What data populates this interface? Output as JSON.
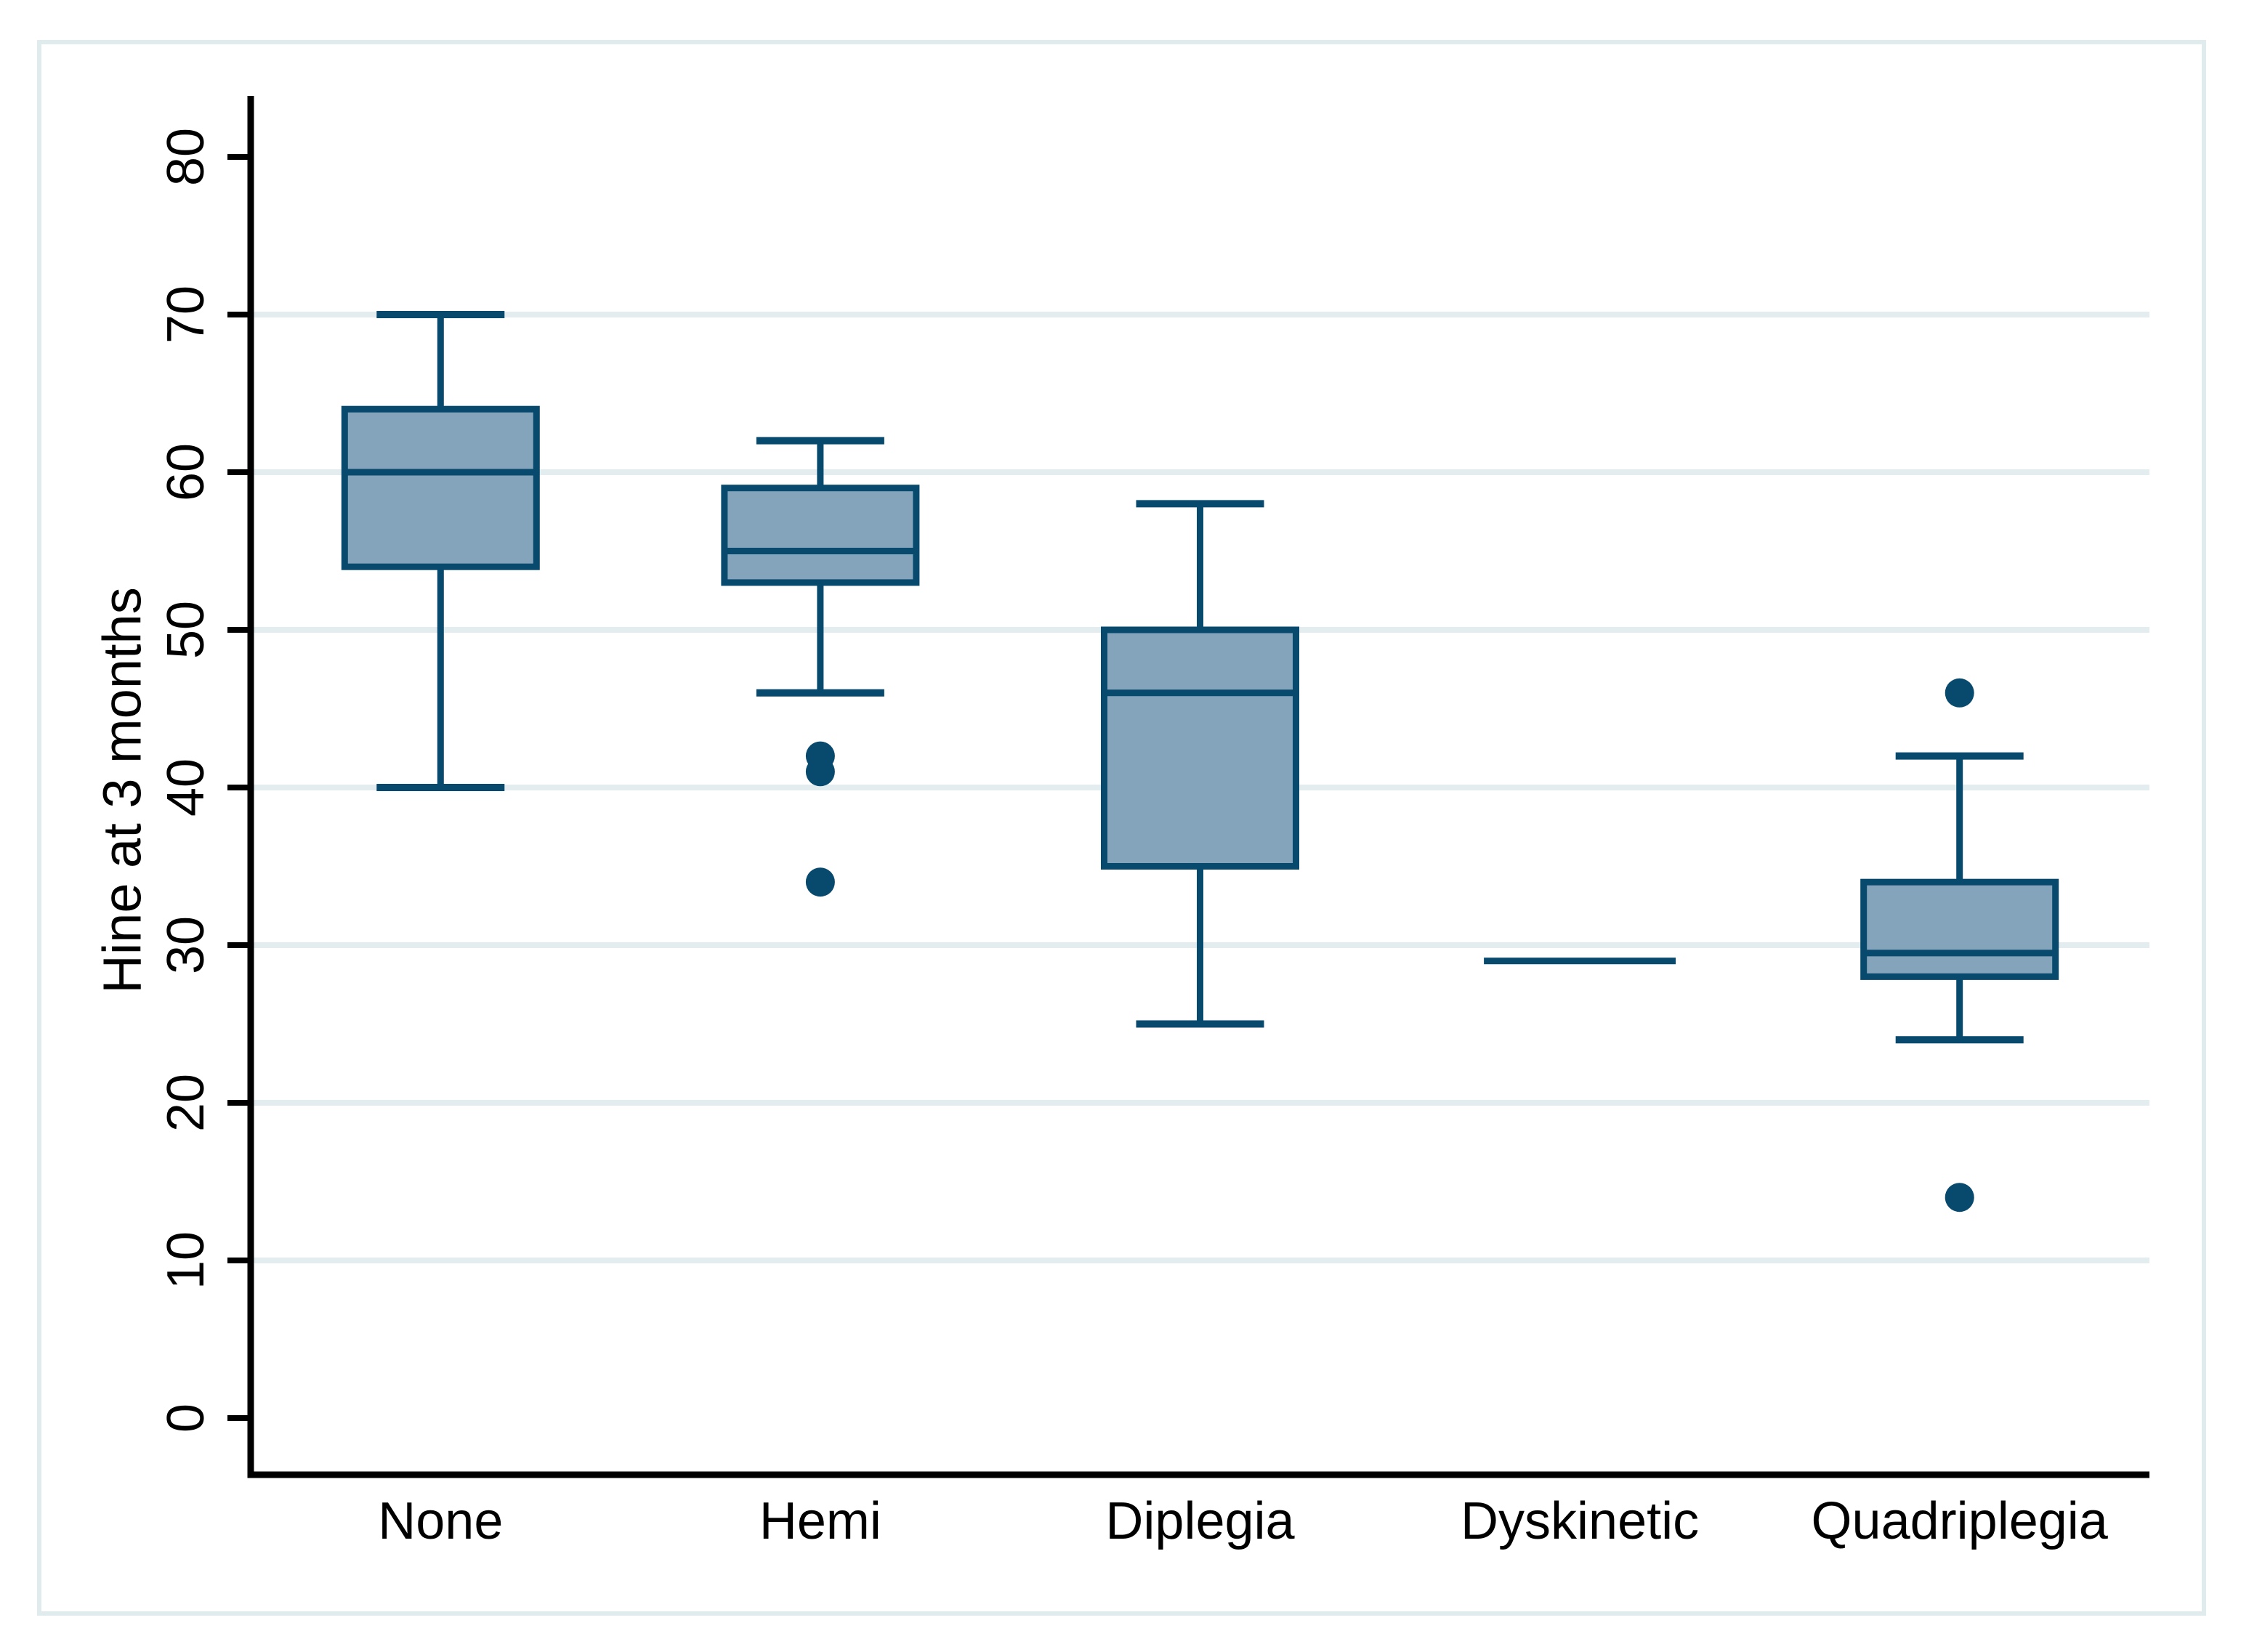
{
  "figure": {
    "background": "#ffffff",
    "border_color": "#e0ebed"
  },
  "chart_data": {
    "type": "box",
    "title": "",
    "ylabel": "Hine at 3 months",
    "xlabel": "",
    "categories": [
      "None",
      "Hemi",
      "Diplegia",
      "Dyskinetic",
      "Quadriplegia"
    ],
    "y_ticks": [
      0,
      10,
      20,
      30,
      40,
      50,
      60,
      70,
      80
    ],
    "grid_ticks": [
      10,
      20,
      30,
      40,
      50,
      60,
      70
    ],
    "ylim": [
      0,
      80
    ],
    "grid": "on",
    "legend": "none",
    "series": [
      {
        "category": "None",
        "whisker_low": 40,
        "q1": 54,
        "median": 60,
        "q3": 64,
        "whisker_high": 70,
        "outliers": []
      },
      {
        "category": "Hemi",
        "whisker_low": 46,
        "q1": 53,
        "median": 55,
        "q3": 59,
        "whisker_high": 62,
        "outliers": [
          42,
          41,
          34
        ]
      },
      {
        "category": "Diplegia",
        "whisker_low": 25,
        "q1": 35,
        "median": 46,
        "q3": 50,
        "whisker_high": 58,
        "outliers": []
      },
      {
        "category": "Dyskinetic",
        "single_value": true,
        "median": 29,
        "outliers": []
      },
      {
        "category": "Quadriplegia",
        "whisker_low": 24,
        "q1": 28,
        "median": 29.5,
        "q3": 34,
        "whisker_high": 42,
        "outliers": [
          46,
          14
        ]
      }
    ],
    "colors": {
      "box_fill": "#84a4bc",
      "box_stroke": "#084a6e",
      "outlier": "#084a6e",
      "gridline": "#e3edf0",
      "axis": "#000000",
      "text": "#000000"
    }
  }
}
